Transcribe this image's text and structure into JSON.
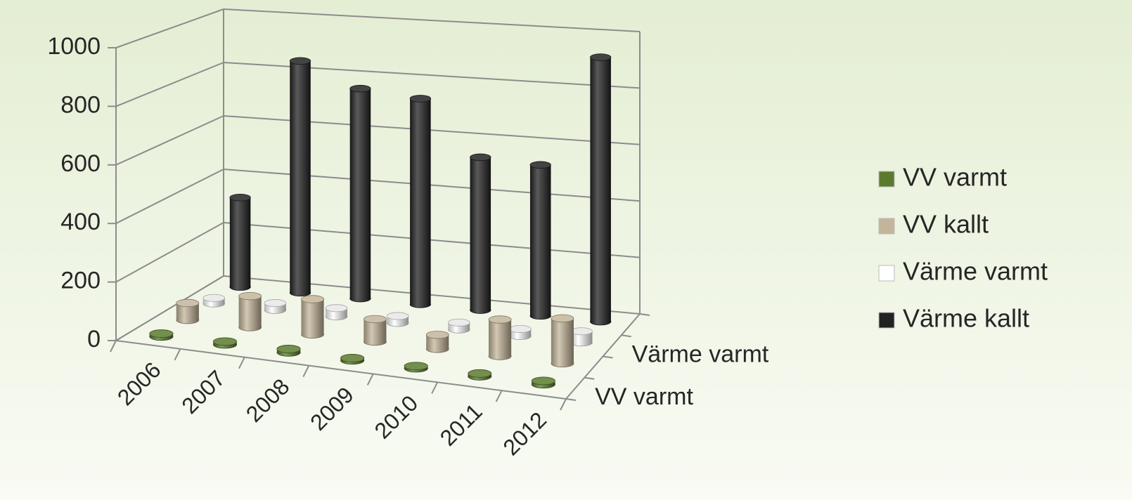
{
  "chart_data": {
    "type": "bar3d",
    "categories": [
      "2006",
      "2007",
      "2008",
      "2009",
      "2010",
      "2011",
      "2012"
    ],
    "depth_categories": [
      "VV varmt",
      null,
      "Värme varmt",
      null
    ],
    "series": [
      {
        "name": "VV varmt",
        "color": "#5a7a2e",
        "values": [
          10,
          10,
          12,
          8,
          8,
          10,
          12
        ]
      },
      {
        "name": "VV kallt",
        "color": "#c4b59a",
        "values": [
          60,
          110,
          125,
          80,
          50,
          130,
          160
        ]
      },
      {
        "name": "Värme varmt",
        "color": "#ffffff",
        "values": [
          20,
          25,
          30,
          25,
          25,
          25,
          40
        ]
      },
      {
        "name": "Värme kallt",
        "color": "#222222",
        "values": [
          330,
          850,
          765,
          745,
          550,
          540,
          940
        ]
      }
    ],
    "ylim": [
      0,
      1000
    ],
    "yticks": [
      0,
      200,
      400,
      600,
      800,
      1000
    ],
    "grid": true,
    "legend": "right"
  }
}
